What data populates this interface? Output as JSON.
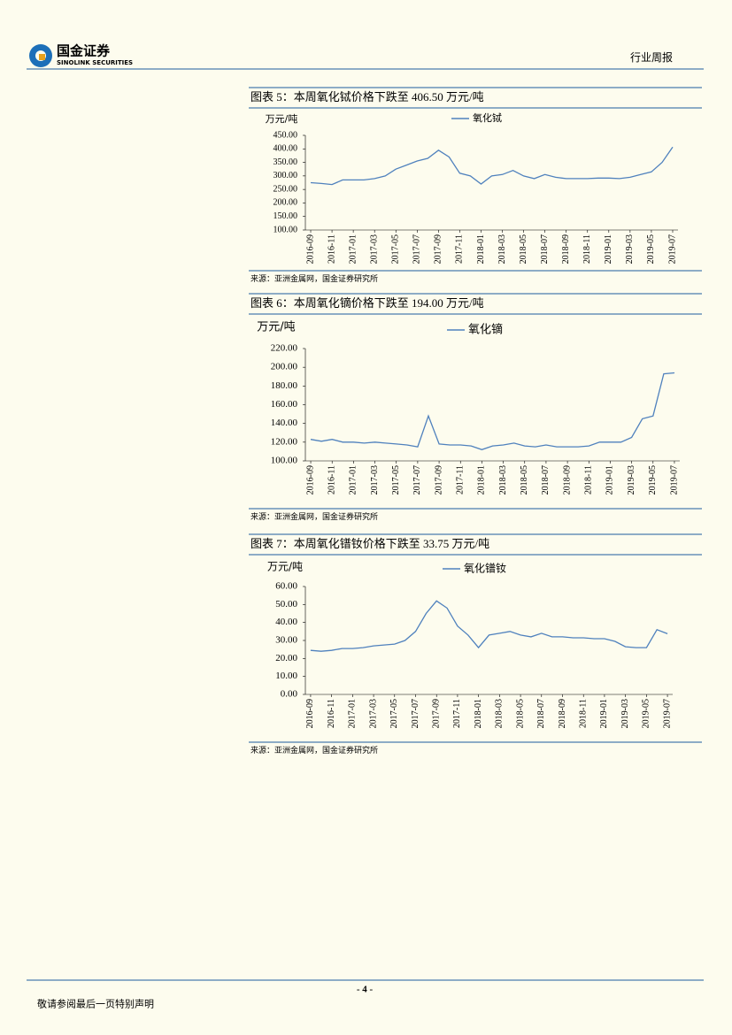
{
  "header": {
    "logo": "国金证券",
    "logo_en": "SINOLINK SECURITIES",
    "report_type": "行业周报"
  },
  "chart_data": [
    {
      "type": "line",
      "title": "图表 5：本周氧化铽价格下跌至 406.50 万元/吨",
      "y_label": "万元/吨",
      "source": "来源：亚洲金属网，国金证券研究所",
      "categories": [
        "2016-09",
        null,
        "2016-11",
        null,
        "2017-01",
        null,
        "2017-03",
        null,
        "2017-05",
        null,
        "2017-07",
        null,
        "2017-09",
        null,
        "2017-11",
        null,
        "2018-01",
        null,
        "2018-03",
        null,
        "2018-05",
        null,
        "2018-07",
        null,
        "2018-09",
        null,
        "2018-11",
        null,
        "2019-01",
        null,
        "2019-03",
        null,
        "2019-05",
        null,
        "2019-07"
      ],
      "series": [
        {
          "name": "氧化铽",
          "color": "#4f81bd",
          "values": [
            275,
            272,
            268,
            285,
            285,
            285,
            290,
            300,
            325,
            340,
            355,
            365,
            395,
            370,
            310,
            300,
            270,
            300,
            305,
            320,
            300,
            290,
            305,
            295,
            290,
            290,
            290,
            292,
            292,
            290,
            295,
            305,
            315,
            350,
            406.5
          ]
        }
      ],
      "ylim": [
        100,
        450
      ],
      "yticks": [
        {
          "value": 100,
          "label": "100.00"
        },
        {
          "value": 150,
          "label": "150.00"
        },
        {
          "value": 200,
          "label": "200.00"
        },
        {
          "value": 250,
          "label": "250.00"
        },
        {
          "value": 300,
          "label": "300.00"
        },
        {
          "value": 350,
          "label": "350.00"
        },
        {
          "value": 400,
          "label": "400.00"
        },
        {
          "value": 450,
          "label": "450.00"
        }
      ]
    },
    {
      "type": "line",
      "title": "图表 6：本周氧化镝价格下跌至 194.00 万元/吨",
      "y_label": "万元/吨",
      "source": "来源：亚洲金属网，国金证券研究所",
      "categories": [
        "2016-09",
        null,
        "2016-11",
        null,
        "2017-01",
        null,
        "2017-03",
        null,
        "2017-05",
        null,
        "2017-07",
        null,
        "2017-09",
        null,
        "2017-11",
        null,
        "2018-01",
        null,
        "2018-03",
        null,
        "2018-05",
        null,
        "2018-07",
        null,
        "2018-09",
        null,
        "2018-11",
        null,
        "2019-01",
        null,
        "2019-03",
        null,
        "2019-05",
        null,
        "2019-07"
      ],
      "series": [
        {
          "name": "氧化镝",
          "color": "#4f81bd",
          "values": [
            123,
            121,
            123,
            120,
            120,
            119,
            120,
            119,
            118,
            117,
            115,
            148,
            118,
            117,
            117,
            116,
            112,
            116,
            117,
            119,
            116,
            115,
            117,
            115,
            115,
            115,
            116,
            120,
            120,
            120,
            125,
            145,
            148,
            193,
            194
          ]
        }
      ],
      "ylim": [
        100,
        220
      ],
      "yticks": [
        {
          "value": 100,
          "label": "100.00"
        },
        {
          "value": 120,
          "label": "120.00"
        },
        {
          "value": 140,
          "label": "140.00"
        },
        {
          "value": 160,
          "label": "160.00"
        },
        {
          "value": 180,
          "label": "180.00"
        },
        {
          "value": 200,
          "label": "200.00"
        },
        {
          "value": 220,
          "label": "220.00"
        }
      ]
    },
    {
      "type": "line",
      "title": "图表 7：本周氧化镨钕价格下跌至 33.75 万元/吨",
      "y_label": "万元/吨",
      "source": "来源：亚洲金属网，国金证券研究所",
      "categories": [
        "2016-09",
        null,
        "2016-11",
        null,
        "2017-01",
        null,
        "2017-03",
        null,
        "2017-05",
        null,
        "2017-07",
        null,
        "2017-09",
        null,
        "2017-11",
        null,
        "2018-01",
        null,
        "2018-03",
        null,
        "2018-05",
        null,
        "2018-07",
        null,
        "2018-09",
        null,
        "2018-11",
        null,
        "2019-01",
        null,
        "2019-03",
        null,
        "2019-05",
        null,
        "2019-07"
      ],
      "series": [
        {
          "name": "氧化镨钕",
          "color": "#4f81bd",
          "values": [
            24.5,
            24,
            24.5,
            25.5,
            25.5,
            26,
            27,
            27.5,
            28,
            30,
            35,
            45,
            52,
            48,
            38,
            33,
            26,
            33,
            34,
            35,
            33,
            32,
            34,
            32,
            32,
            31.5,
            31.5,
            31,
            31,
            29.5,
            26.5,
            26,
            26,
            36,
            33.75
          ]
        }
      ],
      "ylim": [
        0,
        60
      ],
      "yticks": [
        {
          "value": 0,
          "label": "0.00"
        },
        {
          "value": 10,
          "label": "10.00"
        },
        {
          "value": 20,
          "label": "20.00"
        },
        {
          "value": 30,
          "label": "30.00"
        },
        {
          "value": 40,
          "label": "40.00"
        },
        {
          "value": 50,
          "label": "50.00"
        },
        {
          "value": 60,
          "label": "60.00"
        }
      ]
    }
  ],
  "footer": {
    "page": "- 4 -",
    "disclaimer": "敬请参阅最后一页特别声明"
  }
}
